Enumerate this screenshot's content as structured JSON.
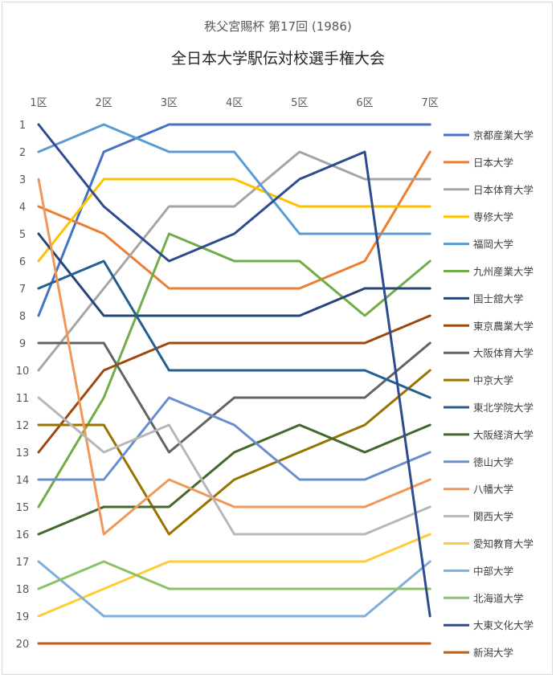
{
  "chart_data": {
    "type": "line",
    "title": "秩父宮賜杯 第17回 (1986)",
    "subtitle": "全日本大学駅伝対校選手権大会",
    "categories": [
      "1区",
      "2区",
      "3区",
      "4区",
      "5区",
      "6区",
      "7区"
    ],
    "ylim": [
      1,
      20
    ],
    "y_reversed": true,
    "y_ticks": [
      "1",
      "2",
      "3",
      "4",
      "5",
      "6",
      "7",
      "8",
      "9",
      "10",
      "11",
      "12",
      "13",
      "14",
      "15",
      "16",
      "17",
      "18",
      "19",
      "20"
    ],
    "grid": false,
    "legend_position": "right",
    "series": [
      {
        "name": "京都産業大学",
        "color": "#4472C4",
        "values": [
          8,
          2,
          1,
          1,
          1,
          1,
          1
        ]
      },
      {
        "name": "日本大学",
        "color": "#ED7D31",
        "values": [
          4,
          5,
          7,
          7,
          7,
          6,
          2
        ]
      },
      {
        "name": "日本体育大学",
        "color": "#A5A5A5",
        "values": [
          10,
          7,
          4,
          4,
          2,
          3,
          3
        ]
      },
      {
        "name": "専修大学",
        "color": "#FFC000",
        "values": [
          6,
          3,
          3,
          3,
          4,
          4,
          4
        ]
      },
      {
        "name": "福岡大学",
        "color": "#5B9BD5",
        "values": [
          2,
          1,
          2,
          2,
          5,
          5,
          5
        ]
      },
      {
        "name": "九州産業大学",
        "color": "#70AD47",
        "values": [
          15,
          11,
          5,
          6,
          6,
          8,
          6
        ]
      },
      {
        "name": "国士舘大学",
        "color": "#264478",
        "values": [
          5,
          8,
          8,
          8,
          8,
          7,
          7
        ]
      },
      {
        "name": "東京農業大学",
        "color": "#9E480E",
        "values": [
          13,
          10,
          9,
          9,
          9,
          9,
          8
        ]
      },
      {
        "name": "大阪体育大学",
        "color": "#636363",
        "values": [
          9,
          9,
          13,
          11,
          11,
          11,
          9
        ]
      },
      {
        "name": "中京大学",
        "color": "#997300",
        "values": [
          12,
          12,
          16,
          14,
          13,
          12,
          10
        ]
      },
      {
        "name": "東北学院大学",
        "color": "#255E91",
        "values": [
          7,
          6,
          10,
          10,
          10,
          10,
          11
        ]
      },
      {
        "name": "大阪経済大学",
        "color": "#43682B",
        "values": [
          16,
          15,
          15,
          13,
          12,
          13,
          12
        ]
      },
      {
        "name": "徳山大学",
        "color": "#698ED0",
        "values": [
          14,
          14,
          11,
          12,
          14,
          14,
          13
        ]
      },
      {
        "name": "八幡大学",
        "color": "#F1975A",
        "values": [
          3,
          16,
          14,
          15,
          15,
          15,
          14
        ]
      },
      {
        "name": "関西大学",
        "color": "#B7B7B7",
        "values": [
          11,
          13,
          12,
          16,
          16,
          16,
          15
        ]
      },
      {
        "name": "愛知教育大学",
        "color": "#FFCD33",
        "values": [
          19,
          18,
          17,
          17,
          17,
          17,
          16
        ]
      },
      {
        "name": "中部大学",
        "color": "#7CAFDD",
        "values": [
          17,
          19,
          19,
          19,
          19,
          19,
          17
        ]
      },
      {
        "name": "北海道大学",
        "color": "#8CC168",
        "values": [
          18,
          17,
          18,
          18,
          18,
          18,
          18
        ]
      },
      {
        "name": "大東文化大学",
        "color": "#2F4B8F",
        "values": [
          1,
          4,
          6,
          5,
          3,
          2,
          19
        ]
      },
      {
        "name": "新潟大学",
        "color": "#C55A11",
        "values": [
          20,
          20,
          20,
          20,
          20,
          20,
          20
        ]
      }
    ]
  }
}
